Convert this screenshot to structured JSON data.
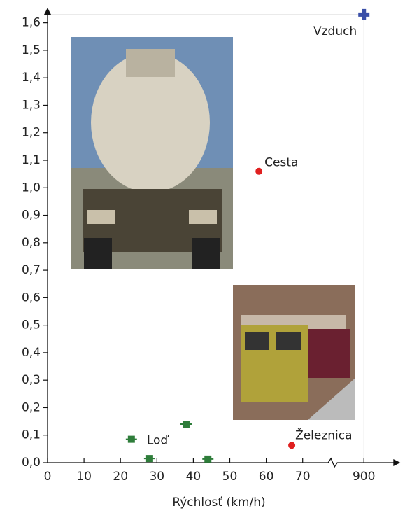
{
  "chart_data": {
    "type": "scatter",
    "x_label": "Rýchlosť (km/h)",
    "xlim": [
      0,
      910
    ],
    "x_break": [
      77,
      895
    ],
    "xticks": [
      0,
      10,
      20,
      30,
      40,
      50,
      60,
      70,
      900
    ],
    "ylim": [
      0,
      1.65
    ],
    "yticks": [
      {
        "value": 0,
        "label": "0,0"
      },
      {
        "value": 0.1,
        "label": "0,1"
      },
      {
        "value": 0.2,
        "label": "0,2"
      },
      {
        "value": 0.3,
        "label": "0,3"
      },
      {
        "value": 0.4,
        "label": "0,4"
      },
      {
        "value": 0.5,
        "label": "0,5"
      },
      {
        "value": 0.6,
        "label": "0,6"
      },
      {
        "value": 0.7,
        "label": "0,7"
      },
      {
        "value": 0.8,
        "label": "0,8"
      },
      {
        "value": 0.9,
        "label": "0,9"
      },
      {
        "value": 1.0,
        "label": "1,0"
      },
      {
        "value": 1.1,
        "label": "1,1"
      },
      {
        "value": 1.2,
        "label": "1,2"
      },
      {
        "value": 1.3,
        "label": "1,3"
      },
      {
        "value": 1.4,
        "label": "1,4"
      },
      {
        "value": 1.5,
        "label": "1,5"
      },
      {
        "value": 1.6,
        "label": "1,6"
      }
    ],
    "series": [
      {
        "name": "Loď",
        "color": "#2e7d3a",
        "marker": "square",
        "x": [
          23,
          28,
          38,
          44
        ],
        "values": [
          0.085,
          0.015,
          0.14,
          0.013
        ]
      },
      {
        "name": "Cesta",
        "color": "#e02020",
        "marker": "circle",
        "x": [
          58
        ],
        "values": [
          1.06
        ]
      },
      {
        "name": "Železnica",
        "color": "#e02020",
        "marker": "circle",
        "x": [
          67
        ],
        "values": [
          0.063
        ]
      },
      {
        "name": "Vzduch",
        "color": "#3a4fa8",
        "marker": "plus",
        "x": [
          900
        ],
        "values": [
          1.63
        ]
      }
    ]
  }
}
